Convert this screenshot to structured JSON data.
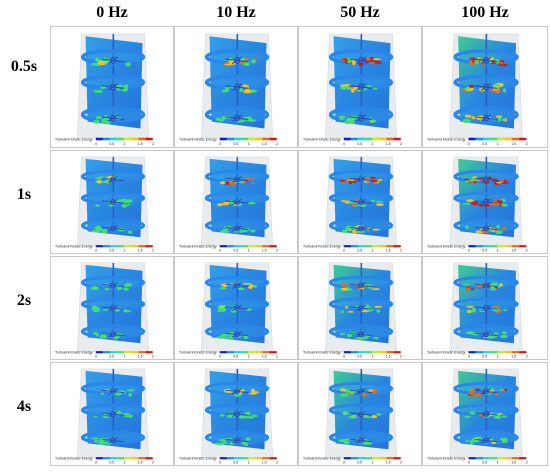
{
  "columns": [
    "0 Hz",
    "10 Hz",
    "50 Hz",
    "100 Hz"
  ],
  "rows": [
    "0.5s",
    "1s",
    "2s",
    "4s"
  ],
  "colorbar": {
    "title": "Turbulent Kinetic Energy",
    "ticks": [
      "0",
      "0.5",
      "1",
      "1.5",
      "2"
    ],
    "colors": [
      "#0b1fd6",
      "#1d8df0",
      "#19d8e6",
      "#42e36b",
      "#c9ef2a",
      "#f7c71d",
      "#f06a14",
      "#d5160e"
    ]
  },
  "colors": {
    "vessel": "#e9ecef",
    "plate_base": "#1e7fe0",
    "disc": "#2a86e8",
    "high": "#d5160e",
    "mid": "#f7c71d",
    "green": "#42e36b"
  }
}
